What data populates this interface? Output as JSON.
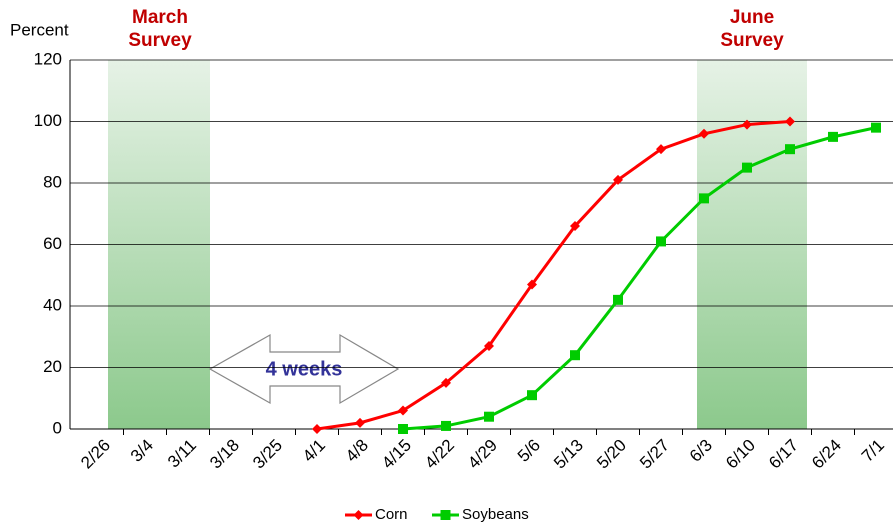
{
  "chart_data": {
    "type": "line",
    "y_label": "Percent",
    "categories": [
      "2/26",
      "3/4",
      "3/11",
      "3/18",
      "3/25",
      "4/1",
      "4/8",
      "4/15",
      "4/22",
      "4/29",
      "5/6",
      "5/13",
      "5/20",
      "5/27",
      "6/3",
      "6/10",
      "6/17",
      "6/24",
      "7/1"
    ],
    "series": [
      {
        "name": "Corn",
        "color": "#ff0000",
        "marker": "diamond",
        "values": [
          null,
          null,
          null,
          null,
          null,
          0,
          2,
          6,
          15,
          27,
          47,
          66,
          81,
          91,
          96,
          99,
          100,
          null,
          null
        ]
      },
      {
        "name": "Soybeans",
        "color": "#00cc00",
        "marker": "square",
        "values": [
          null,
          null,
          null,
          null,
          null,
          null,
          null,
          0,
          1,
          4,
          11,
          24,
          42,
          61,
          75,
          85,
          91,
          95,
          98
        ]
      }
    ],
    "ylim": [
      0,
      120
    ],
    "yticks": [
      0,
      20,
      40,
      60,
      80,
      100,
      120
    ],
    "grid": true,
    "legend": "bottom",
    "annotations": [
      "March Survey",
      "June Survey",
      "4 weeks"
    ]
  }
}
